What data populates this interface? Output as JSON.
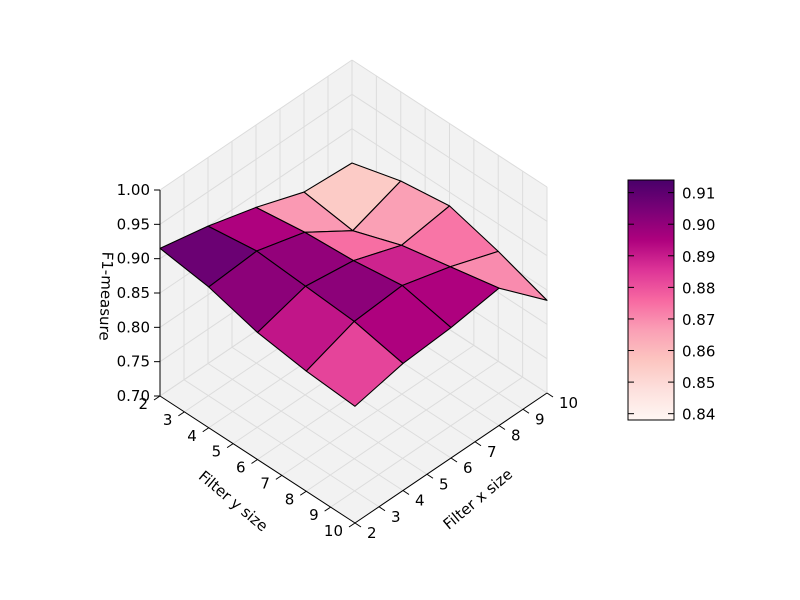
{
  "chart_data": {
    "type": "surface3d",
    "title": "",
    "xlabel": "Filter x size",
    "ylabel": "Filter y size",
    "zlabel": "F1-measure",
    "x": [
      2,
      4,
      6,
      8,
      10
    ],
    "y": [
      2,
      4,
      6,
      8,
      10
    ],
    "x_ticks": [
      2,
      3,
      4,
      5,
      6,
      7,
      8,
      9,
      10
    ],
    "y_ticks": [
      2,
      3,
      4,
      5,
      6,
      7,
      8,
      9,
      10
    ],
    "x_tick_labels": [
      "2",
      "3",
      "4",
      "5",
      "6",
      "7",
      "8",
      "9",
      "10"
    ],
    "y_tick_labels": [
      "2",
      "3",
      "4",
      "5",
      "6",
      "7",
      "8",
      "9",
      "10"
    ],
    "z_ticks": [
      0.7,
      0.75,
      0.8,
      0.85,
      0.9,
      0.95,
      1.0
    ],
    "z_tick_labels": [
      "0.70",
      "0.75",
      "0.80",
      "0.85",
      "0.90",
      "0.95",
      "1.00"
    ],
    "zlim": [
      0.7,
      1.0
    ],
    "z": [
      [
        0.915,
        0.905,
        0.885,
        0.875,
        0.87
      ],
      [
        0.9,
        0.91,
        0.905,
        0.9,
        0.885
      ],
      [
        0.88,
        0.89,
        0.895,
        0.905,
        0.89
      ],
      [
        0.855,
        0.845,
        0.87,
        0.885,
        0.9
      ],
      [
        0.85,
        0.87,
        0.88,
        0.86,
        0.835
      ]
    ],
    "colormap": "RdPu",
    "colorbar": {
      "min": 0.838,
      "max": 0.914,
      "ticks": [
        0.84,
        0.85,
        0.86,
        0.87,
        0.88,
        0.89,
        0.9,
        0.91
      ],
      "tick_labels": [
        "0.84",
        "0.85",
        "0.86",
        "0.87",
        "0.88",
        "0.89",
        "0.90",
        "0.91"
      ]
    }
  }
}
